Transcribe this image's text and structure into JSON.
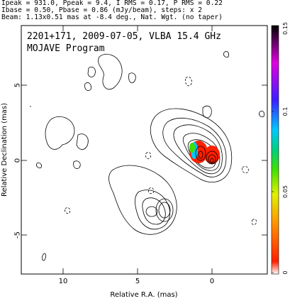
{
  "header": {
    "line1": "Ipeak = 931.0, Ppeak = 9.4, I RMS = 0.17, P RMS = 0.22",
    "line2": "Ibase = 0.50, Pbase = 0.86 (mJy/beam), steps: x 2",
    "line3": "Beam: 1.13x0.51 mas at -8.4 deg., Nat. Wgt. (no taper)"
  },
  "plot": {
    "title": "2201+171, 2009-07-05, VLBA 15.4 GHz",
    "subtitle": "MOJAVE Program",
    "xlabel": "Relative R.A. (mas)",
    "ylabel": "Relative Declination (mas)",
    "xticks": [
      "10",
      "5",
      "0"
    ],
    "yticks": [
      "5",
      "0",
      "-5"
    ]
  },
  "colorbar": {
    "ticks": [
      "0.15",
      "0.1",
      "0.05",
      "0"
    ],
    "colors": [
      "#000000",
      "#e000e0",
      "#3c20ff",
      "#00c8ff",
      "#00d080",
      "#40e000",
      "#e0f000",
      "#ff9000",
      "#ff2000",
      "#ffffff"
    ]
  }
}
